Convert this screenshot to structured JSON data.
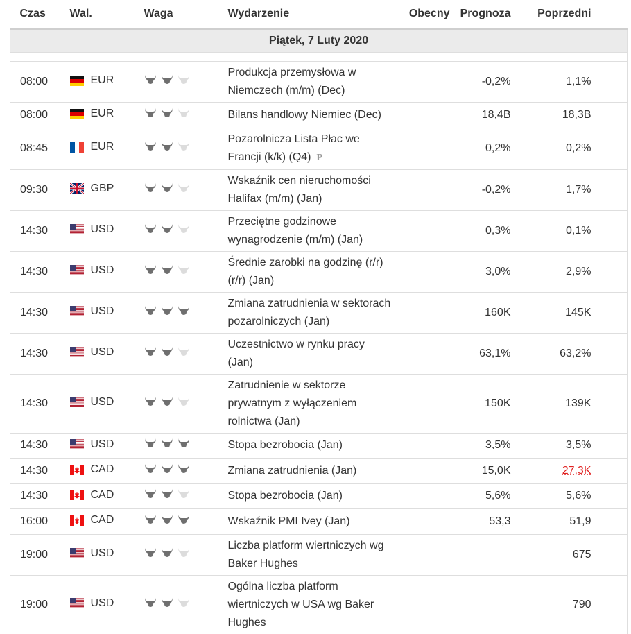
{
  "header": {
    "columns": [
      "Czas",
      "Wal.",
      "Waga",
      "Wydarzenie",
      "Obecny",
      "Prognoza",
      "Poprzedni"
    ]
  },
  "table": {
    "date": "Piątek, 7 Luty 2020",
    "rows": [
      {
        "time": "08:00",
        "currency": "EUR",
        "importance": 2,
        "event": "Produkcja przemysłowa w Niemczech (m/m) (Dec)",
        "forecast": "-0,2%",
        "previous": "1,1%"
      },
      {
        "time": "08:00",
        "currency": "EUR",
        "importance": 2,
        "event": "Bilans handlowy Niemiec (Dec)",
        "forecast": "18,4B",
        "previous": "18,3B"
      },
      {
        "time": "08:45",
        "currency": "EUR",
        "importance": 2,
        "event": "Pozarolnicza Lista Płac we Francji (k/k) (Q4)",
        "mark": "P",
        "forecast": "0,2%",
        "previous": "0,2%"
      },
      {
        "time": "09:30",
        "currency": "GBP",
        "importance": 2,
        "event": "Wskaźnik cen nieruchomości Halifax (m/m) (Jan)",
        "forecast": "-0,2%",
        "previous": "1,7%"
      },
      {
        "time": "14:30",
        "currency": "USD",
        "importance": 2,
        "event": "Przeciętne godzinowe wynagrodzenie (m/m) (Jan)",
        "forecast": "0,3%",
        "previous": "0,1%"
      },
      {
        "time": "14:30",
        "currency": "USD",
        "importance": 2,
        "event": "Średnie zarobki na godzinę (r/r) (r/r) (Jan)",
        "forecast": "3,0%",
        "previous": "2,9%"
      },
      {
        "time": "14:30",
        "currency": "USD",
        "importance": 3,
        "event": "Zmiana zatrudnienia w sektorach pozarolniczych (Jan)",
        "forecast": "160K",
        "previous": "145K"
      },
      {
        "time": "14:30",
        "currency": "USD",
        "importance": 2,
        "event": "Uczestnictwo w rynku pracy (Jan)",
        "forecast": "63,1%",
        "previous": "63,2%"
      },
      {
        "time": "14:30",
        "currency": "USD",
        "importance": 2,
        "event": "Zatrudnienie w sektorze prywatnym z wyłączeniem rolnictwa (Jan)",
        "forecast": "150K",
        "previous": "139K"
      },
      {
        "time": "14:30",
        "currency": "USD",
        "importance": 3,
        "event": "Stopa bezrobocia (Jan)",
        "forecast": "3,5%",
        "previous": "3,5%"
      },
      {
        "time": "14:30",
        "currency": "CAD",
        "importance": 3,
        "event": "Zmiana zatrudnienia (Jan)",
        "forecast": "15,0K",
        "previous": "27,3K",
        "revised": true
      },
      {
        "time": "14:30",
        "currency": "CAD",
        "importance": 2,
        "event": "Stopa bezrobocia (Jan)",
        "forecast": "5,6%",
        "previous": "5,6%"
      },
      {
        "time": "16:00",
        "currency": "CAD",
        "importance": 3,
        "event": "Wskaźnik PMI Ivey (Jan)",
        "forecast": "53,3",
        "previous": "51,9"
      },
      {
        "time": "19:00",
        "currency": "USD",
        "importance": 2,
        "event": "Liczba platform wiertniczych wg Baker Hughes",
        "previous": "675"
      },
      {
        "time": "19:00",
        "currency": "USD",
        "importance": 2,
        "event": "Ogólna liczba platform wiertniczych w USA wg Baker Hughes",
        "previous": "790"
      }
    ]
  }
}
